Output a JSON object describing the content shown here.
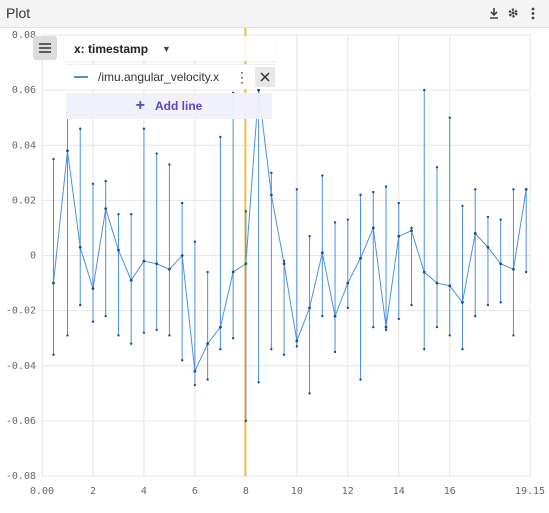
{
  "window": {
    "title": "Plot",
    "icons": [
      "download-icon",
      "gear-icon",
      "kebab-icon"
    ]
  },
  "panel": {
    "x_axis_label": "x: timestamp",
    "series": [
      {
        "topic": "/imu.angular_velocity.x",
        "color": "#4a90e2"
      }
    ],
    "add_line_label": "Add line"
  },
  "colors": {
    "series": "#4a90e2",
    "cursor": "#f0c040",
    "add_line": "#5b45c9"
  },
  "chart_data": {
    "type": "line",
    "xlim": [
      0,
      19.15
    ],
    "ylim": [
      -0.08,
      0.08
    ],
    "x_ticks": [
      "0.00",
      "2",
      "4",
      "6",
      "8",
      "10",
      "12",
      "14",
      "16",
      "19.15"
    ],
    "x_tick_values": [
      0,
      2,
      4,
      6,
      8,
      10,
      12,
      14,
      16,
      19.15
    ],
    "y_ticks": [
      "0.08",
      "0.06",
      "0.04",
      "0.02",
      "0",
      "-0.02",
      "-0.04",
      "-0.06",
      "-0.08"
    ],
    "y_tick_values": [
      0.08,
      0.06,
      0.04,
      0.02,
      0,
      -0.02,
      -0.04,
      -0.06,
      -0.08
    ],
    "cursor_x": 7.98,
    "series": [
      {
        "topic": "/imu.angular_velocity.x",
        "x": [
          0.45,
          1.0,
          1.5,
          2.0,
          2.5,
          3.0,
          3.5,
          4.0,
          4.5,
          5.0,
          5.5,
          6.0,
          6.5,
          7.0,
          7.5,
          8.0,
          8.5,
          9.0,
          9.5,
          10.0,
          10.5,
          11.0,
          11.5,
          12.0,
          12.5,
          13.0,
          13.5,
          14.0,
          14.5,
          15.0,
          15.5,
          16.0,
          16.5,
          17.0,
          17.5,
          18.0,
          18.5,
          19.0
        ],
        "min": [
          -0.036,
          -0.029,
          -0.018,
          -0.024,
          -0.022,
          -0.029,
          -0.032,
          -0.028,
          -0.027,
          -0.029,
          -0.038,
          -0.047,
          -0.045,
          -0.034,
          -0.03,
          -0.06,
          -0.046,
          -0.034,
          -0.036,
          -0.033,
          -0.05,
          -0.022,
          -0.035,
          -0.019,
          -0.045,
          -0.026,
          -0.027,
          -0.023,
          -0.018,
          -0.034,
          -0.026,
          -0.029,
          -0.034,
          -0.022,
          -0.018,
          -0.017,
          -0.029,
          -0.006
        ],
        "max": [
          0.035,
          0.052,
          0.046,
          0.026,
          0.027,
          0.015,
          0.015,
          0.046,
          0.037,
          0.033,
          0.019,
          0.005,
          -0.006,
          0.043,
          0.059,
          0.016,
          0.06,
          0.03,
          -0.002,
          0.024,
          0.007,
          0.029,
          0.012,
          0.013,
          0.022,
          0.023,
          0.025,
          0.019,
          0.01,
          0.06,
          0.032,
          0.05,
          0.018,
          0.024,
          0.014,
          0.013,
          0.024,
          0.024
        ],
        "avg": [
          -0.01,
          0.038,
          0.003,
          -0.012,
          0.017,
          0.002,
          -0.009,
          -0.002,
          -0.003,
          -0.005,
          0.0,
          -0.042,
          -0.032,
          -0.026,
          -0.006,
          -0.003,
          0.06,
          0.022,
          -0.003,
          -0.031,
          -0.019,
          0.001,
          -0.022,
          -0.01,
          -0.001,
          0.01,
          -0.026,
          0.007,
          0.009,
          -0.006,
          -0.01,
          -0.011,
          -0.017,
          0.008,
          0.003,
          -0.003,
          -0.005,
          0.024
        ]
      }
    ]
  }
}
